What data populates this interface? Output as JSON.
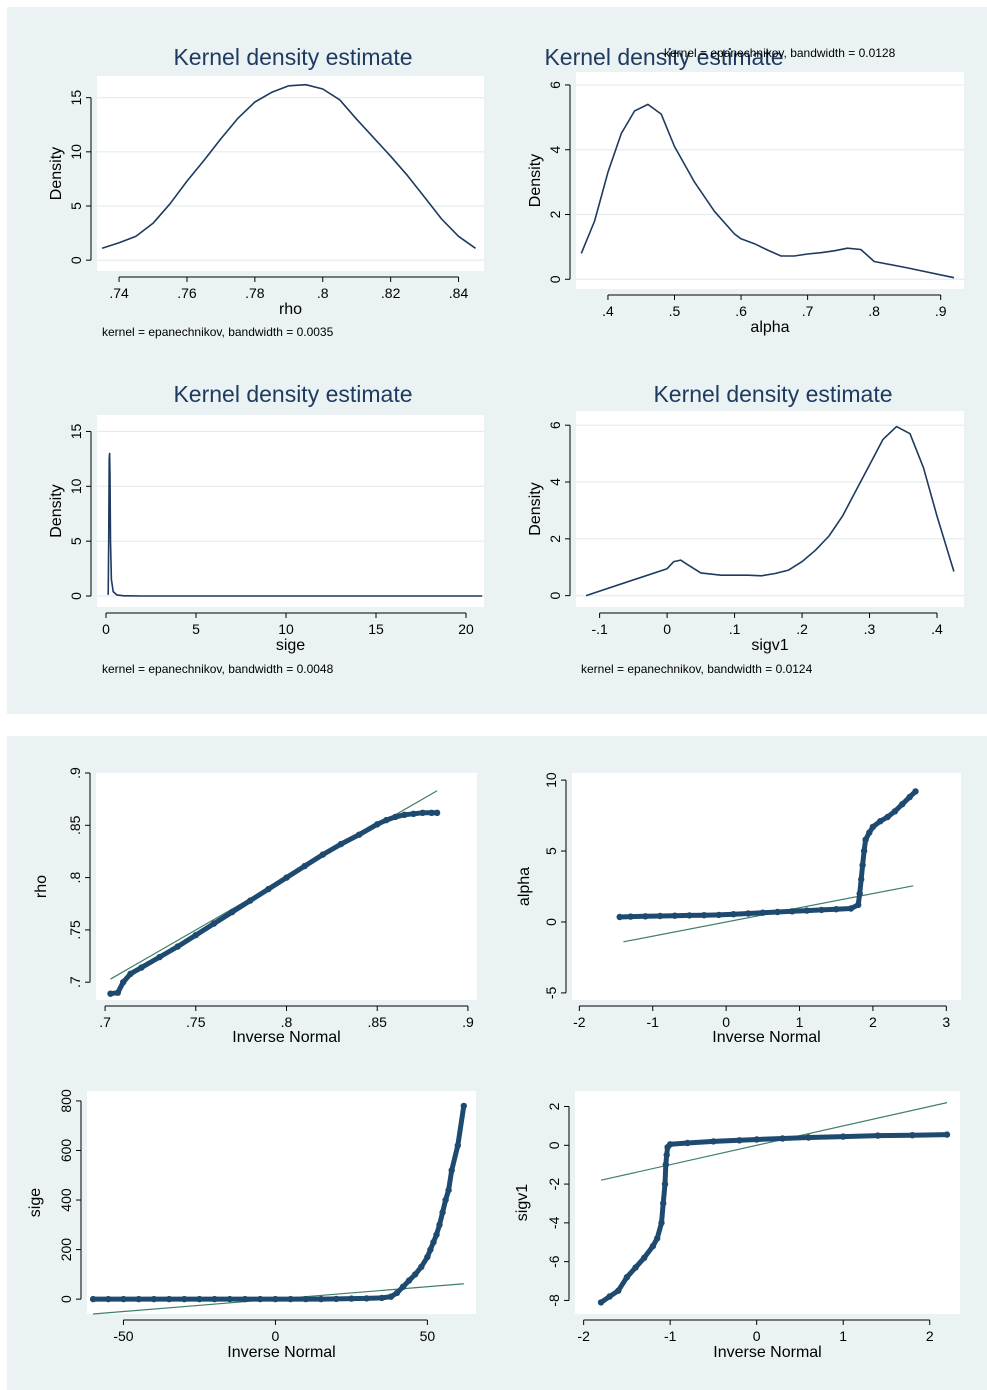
{
  "chart_data": [
    {
      "type": "line",
      "title": "Kernel density estimate",
      "xlabel": "rho",
      "ylabel": "Density",
      "note": "kernel = epanechnikov, bandwidth = 0.0035",
      "xlim": [
        0.7335,
        0.8475
      ],
      "ylim": [
        -1,
        17
      ],
      "xticks": [
        0.74,
        0.76,
        0.78,
        0.8,
        0.82,
        0.84
      ],
      "xtick_labels": [
        ".74",
        ".76",
        ".78",
        ".8",
        ".82",
        ".84"
      ],
      "yticks": [
        0,
        5,
        10,
        15
      ],
      "ytick_labels": [
        "0",
        "5",
        "10",
        "15"
      ],
      "grid": true,
      "x": [
        0.735,
        0.74,
        0.745,
        0.75,
        0.755,
        0.76,
        0.765,
        0.77,
        0.775,
        0.78,
        0.785,
        0.79,
        0.795,
        0.8,
        0.805,
        0.81,
        0.815,
        0.82,
        0.825,
        0.83,
        0.835,
        0.84,
        0.845
      ],
      "y": [
        1.1,
        1.6,
        2.2,
        3.4,
        5.2,
        7.3,
        9.2,
        11.2,
        13.1,
        14.6,
        15.5,
        16.1,
        16.2,
        15.8,
        14.8,
        13.0,
        11.3,
        9.6,
        7.8,
        5.8,
        3.8,
        2.2,
        1.1
      ]
    },
    {
      "type": "line",
      "title": "Kernel density estimate",
      "xlabel": "alpha",
      "ylabel": "Density",
      "note": "kernel = epanechnikov, bandwidth = 0.0128",
      "xlim": [
        0.352,
        0.935
      ],
      "ylim": [
        -0.3,
        6.4
      ],
      "xticks": [
        0.4,
        0.5,
        0.6,
        0.7,
        0.8,
        0.9
      ],
      "xtick_labels": [
        ".4",
        ".5",
        ".6",
        ".7",
        ".8",
        ".9"
      ],
      "yticks": [
        0,
        2,
        4,
        6
      ],
      "ytick_labels": [
        "0",
        "2",
        "4",
        "6"
      ],
      "grid": true,
      "x": [
        0.36,
        0.38,
        0.4,
        0.42,
        0.44,
        0.46,
        0.48,
        0.5,
        0.53,
        0.56,
        0.59,
        0.6,
        0.62,
        0.64,
        0.66,
        0.68,
        0.7,
        0.72,
        0.74,
        0.76,
        0.78,
        0.8,
        0.85,
        0.92
      ],
      "y": [
        0.8,
        1.8,
        3.3,
        4.5,
        5.2,
        5.4,
        5.1,
        4.1,
        3.0,
        2.1,
        1.4,
        1.25,
        1.1,
        0.9,
        0.72,
        0.72,
        0.78,
        0.82,
        0.88,
        0.96,
        0.92,
        0.55,
        0.35,
        0.05
      ]
    },
    {
      "type": "line",
      "title": "Kernel density estimate",
      "xlabel": "sige",
      "ylabel": "Density",
      "note": "kernel = epanechnikov, bandwidth = 0.0048",
      "xlim": [
        -0.5,
        21
      ],
      "ylim": [
        -1,
        16.5
      ],
      "xticks": [
        0,
        5,
        10,
        15,
        20
      ],
      "xtick_labels": [
        "0",
        "5",
        "10",
        "15",
        "20"
      ],
      "yticks": [
        0,
        5,
        10,
        15
      ],
      "ytick_labels": [
        "0",
        "5",
        "10",
        "15"
      ],
      "grid": true,
      "x": [
        0.12,
        0.15,
        0.18,
        0.2,
        0.22,
        0.25,
        0.3,
        0.4,
        0.6,
        1.0,
        2.0,
        5.0,
        10.0,
        15.0,
        20.9
      ],
      "y": [
        0.1,
        5.0,
        12.5,
        13.0,
        11.0,
        5.0,
        1.5,
        0.4,
        0.1,
        0.02,
        0.0,
        0.0,
        0.0,
        0.0,
        0.0
      ]
    },
    {
      "type": "line",
      "title": "Kernel density estimate",
      "xlabel": "sigv1",
      "ylabel": "Density",
      "note": "kernel = epanechnikov, bandwidth = 0.0124",
      "xlim": [
        -0.135,
        0.44
      ],
      "ylim": [
        -0.4,
        6.5
      ],
      "xticks": [
        -0.1,
        0,
        0.1,
        0.2,
        0.3,
        0.4
      ],
      "xtick_labels": [
        "-.1",
        "0",
        ".1",
        ".2",
        ".3",
        ".4"
      ],
      "yticks": [
        0,
        2,
        4,
        6
      ],
      "ytick_labels": [
        "0",
        "2",
        "4",
        "6"
      ],
      "grid": true,
      "x": [
        -0.12,
        0.0,
        0.01,
        0.02,
        0.03,
        0.05,
        0.08,
        0.1,
        0.12,
        0.14,
        0.16,
        0.18,
        0.2,
        0.22,
        0.24,
        0.26,
        0.28,
        0.3,
        0.32,
        0.34,
        0.36,
        0.38,
        0.4,
        0.425
      ],
      "y": [
        0.0,
        0.95,
        1.2,
        1.25,
        1.1,
        0.8,
        0.72,
        0.72,
        0.72,
        0.7,
        0.78,
        0.9,
        1.2,
        1.6,
        2.1,
        2.8,
        3.7,
        4.6,
        5.5,
        5.95,
        5.7,
        4.5,
        2.8,
        0.85
      ]
    },
    {
      "type": "scatter",
      "xlabel": "Inverse Normal",
      "ylabel": "rho",
      "xlim": [
        0.695,
        0.905
      ],
      "ylim": [
        0.683,
        0.9
      ],
      "xticks": [
        0.7,
        0.75,
        0.8,
        0.85,
        0.9
      ],
      "xtick_labels": [
        ".7",
        ".75",
        ".8",
        ".85",
        ".9"
      ],
      "yticks": [
        0.7,
        0.75,
        0.8,
        0.85,
        0.9
      ],
      "ytick_labels": [
        ".7",
        ".75",
        ".8",
        ".85",
        ".9"
      ],
      "grid": false,
      "reference_line": {
        "x": [
          0.703,
          0.883
        ],
        "y": [
          0.703,
          0.883
        ]
      },
      "x": [
        0.703,
        0.707,
        0.71,
        0.714,
        0.72,
        0.73,
        0.74,
        0.75,
        0.76,
        0.77,
        0.78,
        0.79,
        0.8,
        0.81,
        0.82,
        0.83,
        0.84,
        0.85,
        0.855,
        0.86,
        0.865,
        0.87,
        0.875,
        0.88,
        0.883
      ],
      "y": [
        0.689,
        0.69,
        0.7,
        0.708,
        0.714,
        0.724,
        0.734,
        0.745,
        0.756,
        0.767,
        0.778,
        0.789,
        0.8,
        0.811,
        0.822,
        0.832,
        0.841,
        0.851,
        0.855,
        0.858,
        0.86,
        0.861,
        0.862,
        0.862,
        0.862
      ]
    },
    {
      "type": "scatter",
      "xlabel": "Inverse Normal",
      "ylabel": "alpha",
      "xlim": [
        -2.1,
        3.2
      ],
      "ylim": [
        -5.5,
        10.5
      ],
      "xticks": [
        -2,
        -1,
        0,
        1,
        2,
        3
      ],
      "xtick_labels": [
        "-2",
        "-1",
        "0",
        "1",
        "2",
        "3"
      ],
      "yticks": [
        -5,
        0,
        5,
        10
      ],
      "ytick_labels": [
        "-5",
        "0",
        "5",
        "10"
      ],
      "grid": false,
      "reference_line": {
        "x": [
          -1.4,
          2.55
        ],
        "y": [
          -1.4,
          2.55
        ]
      },
      "x": [
        -1.45,
        -1.3,
        -1.1,
        -0.9,
        -0.7,
        -0.5,
        -0.3,
        -0.1,
        0.1,
        0.3,
        0.5,
        0.7,
        0.9,
        1.1,
        1.3,
        1.5,
        1.7,
        1.8,
        1.82,
        1.84,
        1.86,
        1.88,
        1.9,
        1.95,
        2.0,
        2.1,
        2.2,
        2.3,
        2.4,
        2.5,
        2.58
      ],
      "y": [
        0.35,
        0.38,
        0.4,
        0.42,
        0.44,
        0.46,
        0.48,
        0.5,
        0.55,
        0.6,
        0.65,
        0.7,
        0.75,
        0.8,
        0.85,
        0.9,
        0.95,
        1.2,
        2.0,
        3.0,
        4.0,
        5.0,
        5.8,
        6.3,
        6.7,
        7.1,
        7.4,
        7.8,
        8.3,
        8.8,
        9.2
      ]
    },
    {
      "type": "scatter",
      "xlabel": "Inverse Normal",
      "ylabel": "sige",
      "xlim": [
        -62,
        66
      ],
      "ylim": [
        -60,
        840
      ],
      "xticks": [
        -50,
        0,
        50
      ],
      "xtick_labels": [
        "-50",
        "0",
        "50"
      ],
      "yticks": [
        0,
        200,
        400,
        600,
        800
      ],
      "ytick_labels": [
        "0",
        "200",
        "400",
        "600",
        "800"
      ],
      "grid": false,
      "reference_line": {
        "x": [
          -60,
          62
        ],
        "y": [
          -60,
          62
        ]
      },
      "x": [
        -60,
        -55,
        -50,
        -45,
        -40,
        -35,
        -30,
        -25,
        -20,
        -15,
        -10,
        -5,
        0,
        5,
        10,
        15,
        20,
        25,
        30,
        35,
        38,
        40,
        42,
        44,
        46,
        48,
        50,
        51,
        52,
        53,
        54,
        55,
        56,
        57,
        58,
        60,
        62
      ],
      "y": [
        0,
        0,
        0,
        0,
        0,
        0,
        0,
        0,
        0,
        0,
        0,
        0,
        0,
        0,
        0,
        0,
        1,
        2,
        3,
        5,
        10,
        25,
        50,
        75,
        100,
        130,
        170,
        200,
        230,
        260,
        300,
        350,
        400,
        440,
        520,
        620,
        780
      ]
    },
    {
      "type": "scatter",
      "xlabel": "Inverse Normal",
      "ylabel": "sigv1",
      "xlim": [
        -2.1,
        2.35
      ],
      "ylim": [
        -8.7,
        2.8
      ],
      "xticks": [
        -2,
        -1,
        0,
        1,
        2
      ],
      "xtick_labels": [
        "-2",
        "-1",
        "0",
        "1",
        "2"
      ],
      "yticks": [
        -8,
        -6,
        -4,
        -2,
        0,
        2
      ],
      "ytick_labels": [
        "-8",
        "-6",
        "-4",
        "-2",
        "0",
        "2"
      ],
      "grid": false,
      "reference_line": {
        "x": [
          -1.8,
          2.2
        ],
        "y": [
          -1.8,
          2.2
        ]
      },
      "x": [
        -1.8,
        -1.7,
        -1.6,
        -1.5,
        -1.4,
        -1.3,
        -1.2,
        -1.15,
        -1.1,
        -1.08,
        -1.06,
        -1.05,
        -1.04,
        -1.03,
        -1.0,
        -0.8,
        -0.5,
        -0.2,
        0.0,
        0.3,
        0.6,
        1.0,
        1.4,
        1.8,
        2.2
      ],
      "y": [
        -8.1,
        -7.8,
        -7.5,
        -6.8,
        -6.3,
        -5.8,
        -5.2,
        -4.8,
        -4.0,
        -3.0,
        -2.0,
        -1.0,
        -0.5,
        -0.1,
        0.05,
        0.12,
        0.2,
        0.26,
        0.3,
        0.35,
        0.4,
        0.45,
        0.5,
        0.52,
        0.55
      ]
    }
  ]
}
